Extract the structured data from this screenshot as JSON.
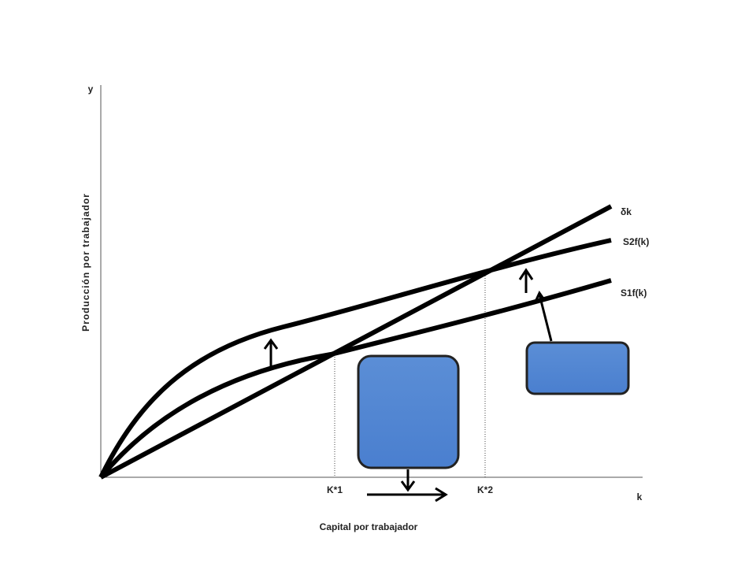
{
  "axes": {
    "y_label": "y",
    "y_title": "Producción por trabajador",
    "x_label": "k",
    "x_title": "Capital por trabajador"
  },
  "curves": {
    "depreciation": "δk",
    "savings_2": "S2f(k)",
    "savings_1": "S1f(k)"
  },
  "steady_states": {
    "first": "K*1",
    "second": "K*2"
  }
}
